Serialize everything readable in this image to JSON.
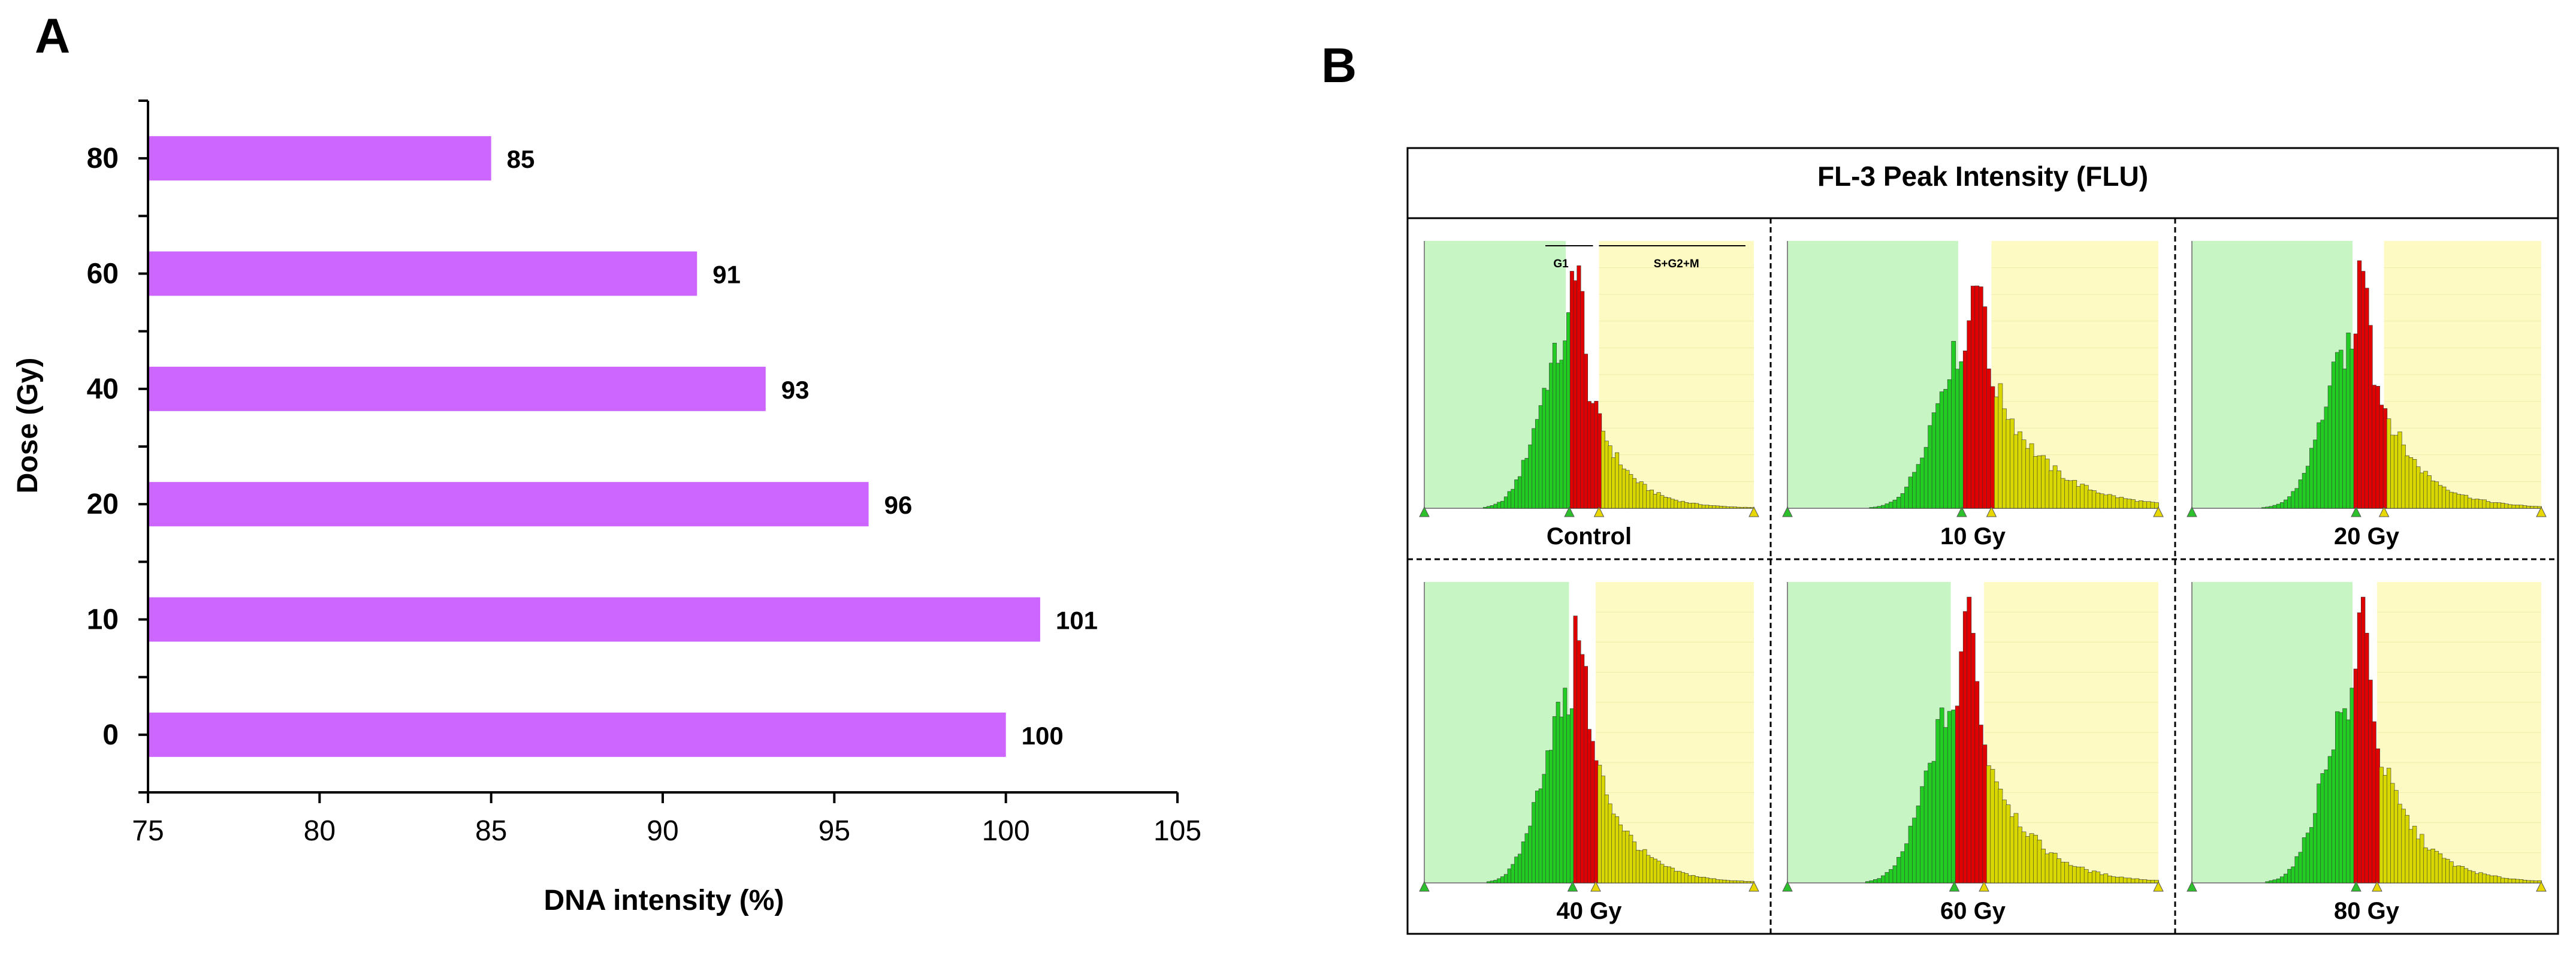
{
  "panel_a": {
    "label": "A",
    "chart_data": {
      "type": "bar",
      "orientation": "horizontal",
      "title": "",
      "xlabel": "DNA intensity (%)",
      "ylabel": "Dose (Gy)",
      "categories": [
        "0",
        "10",
        "20",
        "40",
        "60",
        "80"
      ],
      "values": [
        100,
        101,
        96,
        93,
        91,
        85
      ],
      "data_labels": [
        "100",
        "101",
        "96",
        "93",
        "91",
        "85"
      ],
      "xlim": [
        75,
        105
      ],
      "xticks": [
        75,
        80,
        85,
        90,
        95,
        100,
        105
      ],
      "bar_color": "#cc66ff",
      "grid": false,
      "legend": "none"
    }
  },
  "panel_b": {
    "label": "B",
    "title": "FL-3 Peak Intensity (FLU)",
    "gate_labels": {
      "g1": "G1",
      "s_g2_m": "S+G2+M"
    },
    "colors": {
      "g1_region": "#c8f5c4",
      "s_g2_m_region": "#fdfac4",
      "g1_histogram": "#22cc22",
      "g1_peak_histogram": "#e00000",
      "s_g2_m_histogram": "#d8d800"
    },
    "chart_data": [
      {
        "type": "histogram",
        "caption": "Control",
        "g1_peak": 0.46,
        "peak_height": 1.0,
        "tail": 0.9,
        "g1_gate_end": 0.44,
        "peak_gate_end": 0.53
      },
      {
        "type": "histogram",
        "caption": "10 Gy",
        "g1_peak": 0.51,
        "peak_height": 0.97,
        "tail": 1.25,
        "g1_gate_end": 0.47,
        "peak_gate_end": 0.55
      },
      {
        "type": "histogram",
        "caption": "20 Gy",
        "g1_peak": 0.49,
        "peak_height": 1.0,
        "tail": 1.0,
        "g1_gate_end": 0.47,
        "peak_gate_end": 0.55
      },
      {
        "type": "histogram",
        "caption": "40 Gy",
        "g1_peak": 0.47,
        "peak_height": 0.92,
        "tail": 0.95,
        "g1_gate_end": 0.45,
        "peak_gate_end": 0.52
      },
      {
        "type": "histogram",
        "caption": "60 Gy",
        "g1_peak": 0.49,
        "peak_height": 1.0,
        "tail": 1.05,
        "g1_gate_end": 0.45,
        "peak_gate_end": 0.53
      },
      {
        "type": "histogram",
        "caption": "80 Gy",
        "g1_peak": 0.49,
        "peak_height": 1.0,
        "tail": 1.0,
        "g1_gate_end": 0.47,
        "peak_gate_end": 0.53
      }
    ]
  }
}
